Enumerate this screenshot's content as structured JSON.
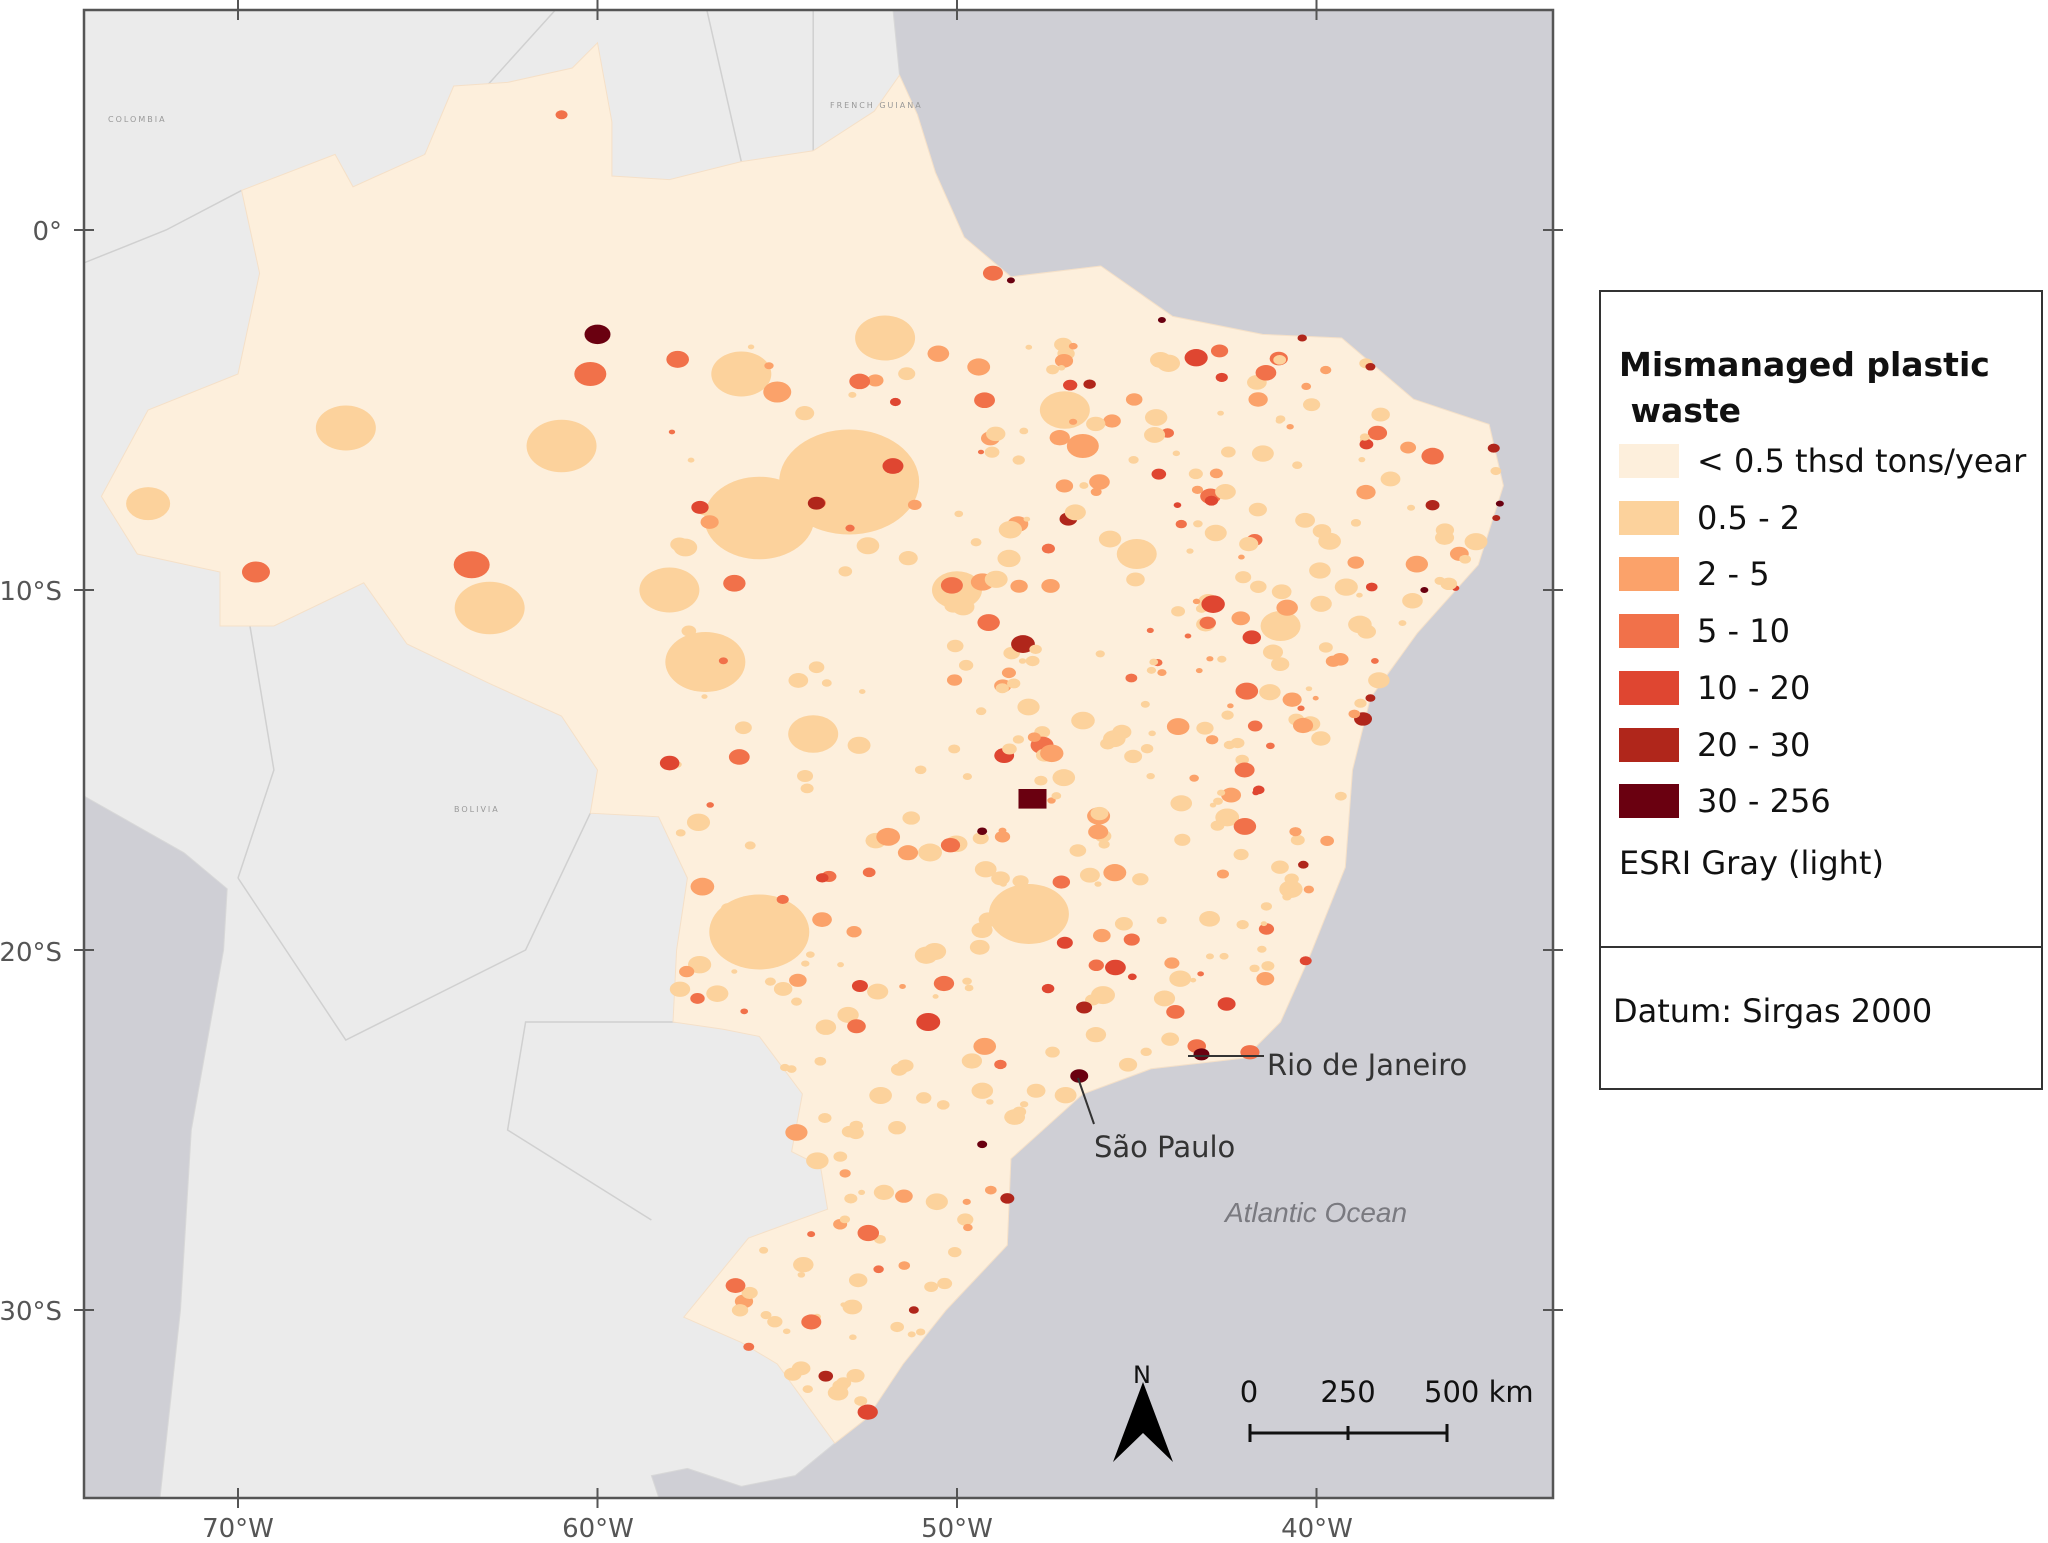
{
  "map": {
    "title": "Mismanaged plastic\n waste",
    "lon_ticks": [
      "70°W",
      "60°W",
      "50°W",
      "40°W"
    ],
    "lat_ticks": [
      "0°",
      "10°S",
      "20°S",
      "30°S"
    ],
    "cities": {
      "rio": "Rio de Janeiro",
      "sao_paulo": "São Paulo"
    },
    "ocean_label": "Atlantic Ocean",
    "countries": {
      "colombia": "COLOMBIA",
      "bolivia": "BOLIVIA",
      "french_guiana": "FRENCH GUIANA"
    },
    "north_label": "N",
    "scale_labels": [
      "0",
      "250",
      "500 km"
    ]
  },
  "legend": {
    "title": "Mismanaged plastic\n waste",
    "classes": [
      {
        "label": "< 0.5 thsd tons/year",
        "color": "#fdefdc"
      },
      {
        "label": "0.5 - 2",
        "color": "#fcd29c"
      },
      {
        "label": "2 - 5",
        "color": "#fba26a"
      },
      {
        "label": "5 - 10",
        "color": "#f1714a"
      },
      {
        "label": "10 - 20",
        "color": "#df4631"
      },
      {
        "label": "20 - 30",
        "color": "#b0261b"
      },
      {
        "label": "30 - 256",
        "color": "#6a0010"
      }
    ],
    "basemap": "ESRI Gray (light)",
    "datum": "Datum: Sirgas 2000"
  },
  "colors": {
    "ocean": "#cfcfd5",
    "land": "#ebebeb",
    "frame": "#555555"
  }
}
